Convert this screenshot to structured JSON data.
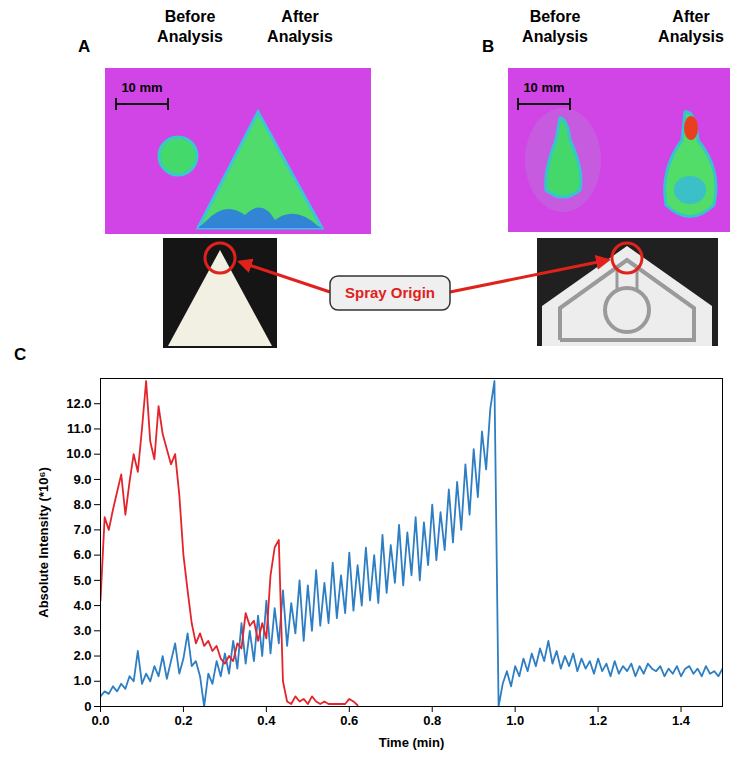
{
  "figure": {
    "panels": [
      {
        "label": "A",
        "headers": [
          "Before Analysis",
          "After Analysis"
        ],
        "scale_bar": "10 mm"
      },
      {
        "label": "B",
        "headers": [
          "Before Analysis",
          "After Analysis"
        ],
        "scale_bar": "10 mm"
      }
    ],
    "annotation": "Spray Origin"
  },
  "chart_data": {
    "type": "line",
    "panel_label": "C",
    "x_label": "Time (min)",
    "y_label": "Absolute Intensity (*10⁶)",
    "xlim": [
      0,
      1.5
    ],
    "ylim": [
      0,
      13
    ],
    "xticks": [
      {
        "value": 0,
        "label": "0.0"
      },
      0.2,
      0.4,
      0.6,
      0.8,
      {
        "value": 1,
        "label": "1.0"
      },
      1.2,
      1.4
    ],
    "yticks": [
      0,
      {
        "value": 1,
        "label": "1.0"
      },
      {
        "value": 2,
        "label": "2.0"
      },
      {
        "value": 3,
        "label": "3.0"
      },
      {
        "value": 4,
        "label": "4.0"
      },
      {
        "value": 5,
        "label": "5.0"
      },
      {
        "value": 6,
        "label": "6.0"
      },
      {
        "value": 7,
        "label": "7.0"
      },
      {
        "value": 8,
        "label": "8.0"
      },
      {
        "value": 9,
        "label": "9.0"
      },
      {
        "value": 10,
        "label": "10.0"
      },
      {
        "value": 11,
        "label": "11.0"
      },
      {
        "value": 12,
        "label": "12.0"
      }
    ],
    "grid": false,
    "x": [
      0,
      0.01,
      0.02,
      0.03,
      0.04,
      0.05,
      0.06,
      0.07,
      0.08,
      0.09,
      0.1,
      0.11,
      0.12,
      0.13,
      0.14,
      0.15,
      0.16,
      0.17,
      0.18,
      0.19,
      0.2,
      0.21,
      0.22,
      0.23,
      0.24,
      0.25,
      0.26,
      0.27,
      0.28,
      0.29,
      0.3,
      0.31,
      0.32,
      0.33,
      0.34,
      0.35,
      0.36,
      0.37,
      0.38,
      0.39,
      0.4,
      0.41,
      0.42,
      0.43,
      0.44,
      0.45,
      0.46,
      0.47,
      0.48,
      0.49,
      0.5,
      0.51,
      0.52,
      0.53,
      0.54,
      0.55,
      0.56,
      0.57,
      0.58,
      0.59,
      0.6,
      0.61,
      0.62,
      0.63,
      0.64,
      0.65,
      0.66,
      0.67,
      0.68,
      0.69,
      0.7,
      0.71,
      0.72,
      0.73,
      0.74,
      0.75,
      0.76,
      0.77,
      0.78,
      0.79,
      0.8,
      0.81,
      0.82,
      0.83,
      0.84,
      0.85,
      0.86,
      0.87,
      0.88,
      0.89,
      0.9,
      0.91,
      0.92,
      0.93,
      0.94,
      0.95,
      0.96,
      0.97,
      0.98,
      0.99,
      1,
      1.01,
      1.02,
      1.03,
      1.04,
      1.05,
      1.06,
      1.07,
      1.08,
      1.09,
      1.1,
      1.11,
      1.12,
      1.13,
      1.14,
      1.15,
      1.16,
      1.17,
      1.18,
      1.19,
      1.2,
      1.21,
      1.22,
      1.23,
      1.24,
      1.25,
      1.26,
      1.27,
      1.28,
      1.29,
      1.3,
      1.31,
      1.32,
      1.33,
      1.34,
      1.35,
      1.36,
      1.37,
      1.38,
      1.39,
      1.4,
      1.41,
      1.42,
      1.43,
      1.44,
      1.45,
      1.46,
      1.47,
      1.48,
      1.49,
      1.5
    ],
    "series": [
      {
        "color": "#2e7ec4",
        "values": [
          0.4,
          0.6,
          0.5,
          0.8,
          0.6,
          0.9,
          0.7,
          1.2,
          1.0,
          2.2,
          0.9,
          1.3,
          1.0,
          1.6,
          1.2,
          2.0,
          1.1,
          1.8,
          2.5,
          1.3,
          1.9,
          2.9,
          1.6,
          1.8,
          1.2,
          0.0,
          1.3,
          0.9,
          1.8,
          1.2,
          2.1,
          1.3,
          2.6,
          1.5,
          3.3,
          1.7,
          3.0,
          1.8,
          3.6,
          2.0,
          4.2,
          2.1,
          3.9,
          2.5,
          4.6,
          2.4,
          4.1,
          2.9,
          5.0,
          2.6,
          4.8,
          3.0,
          5.4,
          3.2,
          4.9,
          3.3,
          5.7,
          3.5,
          5.2,
          3.7,
          6.1,
          3.8,
          5.6,
          4.0,
          6.3,
          4.2,
          6.0,
          4.1,
          6.8,
          4.5,
          6.4,
          4.9,
          7.2,
          4.8,
          6.9,
          5.2,
          7.5,
          5.0,
          7.3,
          5.6,
          8.0,
          5.8,
          7.7,
          6.2,
          8.6,
          6.5,
          8.9,
          7.0,
          9.6,
          7.6,
          10.2,
          8.3,
          10.9,
          9.4,
          11.8,
          12.9,
          0.0,
          0.9,
          1.4,
          0.8,
          1.6,
          1.2,
          1.9,
          1.4,
          2.1,
          1.6,
          2.3,
          1.8,
          2.6,
          1.7,
          2.2,
          1.5,
          2.0,
          1.6,
          2.1,
          1.4,
          1.9,
          1.5,
          1.8,
          1.3,
          1.9,
          1.4,
          1.7,
          1.2,
          1.8,
          1.3,
          1.6,
          1.4,
          1.7,
          1.2,
          1.6,
          1.3,
          1.7,
          1.5,
          1.4,
          1.6,
          1.2,
          1.5,
          1.3,
          1.6,
          1.2,
          1.5,
          1.6,
          1.3,
          1.5,
          1.2,
          1.6,
          1.3,
          1.4,
          1.2,
          1.5
        ]
      },
      {
        "color": "#e4232b",
        "values": [
          4.2,
          7.5,
          7.0,
          7.8,
          8.5,
          9.2,
          7.6,
          8.9,
          10.0,
          9.3,
          11.0,
          12.9,
          10.5,
          9.8,
          11.9,
          10.8,
          10.2,
          9.6,
          10.0,
          8.4,
          6.0,
          4.6,
          3.3,
          2.5,
          2.9,
          2.4,
          2.6,
          2.2,
          2.4,
          1.9,
          1.7,
          2.0,
          1.8,
          2.5,
          2.3,
          3.7,
          3.2,
          3.4,
          2.6,
          3.3,
          2.7,
          5.2,
          6.3,
          6.6,
          1.0,
          0.2,
          0.1,
          0.4,
          0.2,
          0.3,
          0.1,
          0.4,
          0.2,
          0.1,
          0.2,
          0.1,
          0.1,
          0.1,
          0.1,
          0.1,
          0.3,
          0.2,
          0.05,
          null,
          null,
          null,
          null,
          null,
          null,
          null,
          null,
          null,
          null,
          null,
          null,
          null,
          null,
          null,
          null,
          null,
          null,
          null,
          null,
          null,
          null,
          null,
          null,
          null,
          null,
          null,
          null,
          null,
          null,
          null,
          null,
          null,
          null,
          null,
          null,
          null,
          null,
          null,
          null,
          null,
          null,
          null,
          null,
          null,
          null,
          null,
          null,
          null,
          null,
          null,
          null,
          null,
          null,
          null,
          null,
          null,
          null,
          null,
          null,
          null,
          null,
          null,
          null,
          null,
          null,
          null,
          null,
          null,
          null,
          null,
          null,
          null,
          null,
          null,
          null,
          null,
          null,
          null,
          null,
          null,
          null,
          null,
          null,
          null,
          null,
          null,
          null
        ]
      }
    ]
  }
}
